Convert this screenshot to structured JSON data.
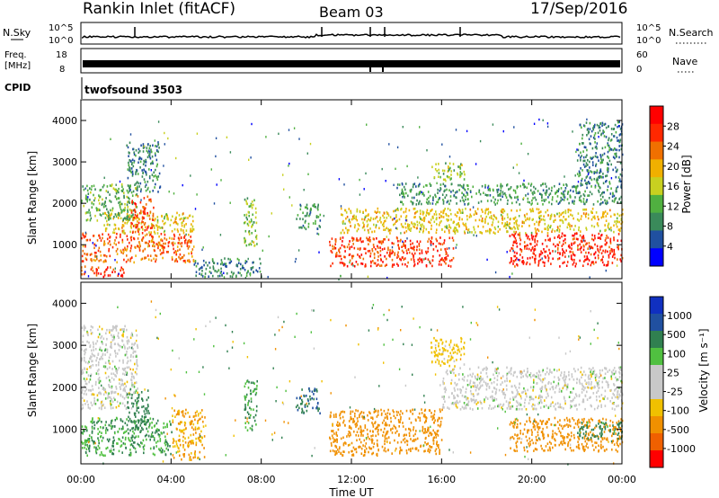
{
  "header": {
    "station": "Rankin Inlet (fitACF)",
    "beam": "Beam 03",
    "date": "17/Sep/2016"
  },
  "aux_panels": {
    "nsky": {
      "label": "N.Sky",
      "left_ticks": [
        "10^5",
        "10^0"
      ],
      "right_ticks": [
        "10^5",
        "10^0"
      ],
      "right_label": "N.Search"
    },
    "freq": {
      "label_line1": "Freq.",
      "label_line2": "[MHz]",
      "left_ticks": [
        "18",
        "8"
      ],
      "right_ticks": [
        "60",
        "0"
      ],
      "right_label": "Nave"
    },
    "cpid": {
      "label": "CPID",
      "value": "twofsound 3503"
    }
  },
  "x_axis": {
    "label": "Time UT",
    "ticks": [
      "00:00",
      "04:00",
      "08:00",
      "12:00",
      "16:00",
      "20:00",
      "00:00"
    ]
  },
  "colors": {
    "power": [
      "#0000ff",
      "#2050a0",
      "#3a8a5a",
      "#50b040",
      "#c8d020",
      "#f0b000",
      "#f07000",
      "#ff2800",
      "#ff0000"
    ],
    "velocity": [
      "#ff0000",
      "#f06000",
      "#f09000",
      "#f0c000",
      "#c8c8c8",
      "#c8c8c8",
      "#50c040",
      "#308050",
      "#2050a0",
      "#1030c0"
    ]
  },
  "chart_data": [
    {
      "type": "heatmap",
      "title": "Power",
      "xlabel": "Time UT",
      "ylabel": "Slant Range [km]",
      "xlim": [
        0,
        24
      ],
      "ylim": [
        180,
        4500
      ],
      "y_ticks": [
        "1000",
        "2000",
        "3000",
        "4000"
      ],
      "colorbar": {
        "label": "Power [dB]",
        "ticks": [
          "28",
          "24",
          "20",
          "16",
          "12",
          "8",
          "4"
        ],
        "range": [
          0,
          32
        ]
      },
      "regions": [
        {
          "t0": 0.0,
          "t1": 2.0,
          "r0": 250,
          "r1": 500,
          "v": 26
        },
        {
          "t0": 0.0,
          "t1": 5.0,
          "r0": 600,
          "r1": 1300,
          "v": 24
        },
        {
          "t0": 1.0,
          "t1": 5.0,
          "r0": 1300,
          "r1": 1800,
          "v": 18
        },
        {
          "t0": 0.0,
          "t1": 2.5,
          "r0": 1600,
          "r1": 2500,
          "v": 12
        },
        {
          "t0": 2.2,
          "t1": 3.2,
          "r0": 1300,
          "r1": 2200,
          "v": 26
        },
        {
          "t0": 2.0,
          "t1": 3.5,
          "r0": 2300,
          "r1": 3500,
          "v": 8
        },
        {
          "t0": 5.0,
          "t1": 8.0,
          "r0": 250,
          "r1": 700,
          "v": 8
        },
        {
          "t0": 7.2,
          "t1": 7.8,
          "r0": 1000,
          "r1": 2200,
          "v": 14
        },
        {
          "t0": 9.5,
          "t1": 10.6,
          "r0": 1400,
          "r1": 2000,
          "v": 10
        },
        {
          "t0": 11.0,
          "t1": 16.5,
          "r0": 500,
          "r1": 1200,
          "v": 26
        },
        {
          "t0": 11.5,
          "t1": 24.0,
          "r0": 1300,
          "r1": 1900,
          "v": 18
        },
        {
          "t0": 14.0,
          "t1": 24.0,
          "r0": 2000,
          "r1": 2500,
          "v": 10
        },
        {
          "t0": 15.5,
          "t1": 17.0,
          "r0": 2600,
          "r1": 3000,
          "v": 14
        },
        {
          "t0": 19.0,
          "t1": 24.0,
          "r0": 500,
          "r1": 1300,
          "v": 28
        },
        {
          "t0": 22.0,
          "t1": 24.0,
          "r0": 2500,
          "r1": 4000,
          "v": 8
        }
      ]
    },
    {
      "type": "heatmap",
      "title": "Velocity",
      "xlabel": "Time UT",
      "ylabel": "Slant Range [km]",
      "xlim": [
        0,
        24
      ],
      "ylim": [
        180,
        4500
      ],
      "y_ticks": [
        "1000",
        "2000",
        "3000",
        "4000"
      ],
      "colorbar": {
        "label": "Velocity [m s⁻¹]",
        "ticks": [
          "1000",
          "500",
          "100",
          "25",
          "-25",
          "-100",
          "-500",
          "-1000"
        ]
      },
      "regions": [
        {
          "t0": 0.0,
          "t1": 4.0,
          "r0": 400,
          "r1": 1300,
          "v": 100
        },
        {
          "t0": 0.0,
          "t1": 2.5,
          "r0": 1500,
          "r1": 3500,
          "v": 0
        },
        {
          "t0": 2.0,
          "t1": 3.0,
          "r0": 1000,
          "r1": 2000,
          "v": 200
        },
        {
          "t0": 4.0,
          "t1": 5.5,
          "r0": 300,
          "r1": 1500,
          "v": -100
        },
        {
          "t0": 7.2,
          "t1": 7.8,
          "r0": 1000,
          "r1": 2200,
          "v": 100
        },
        {
          "t0": 9.5,
          "t1": 10.6,
          "r0": 1400,
          "r1": 2000,
          "v": 500
        },
        {
          "t0": 11.0,
          "t1": 16.0,
          "r0": 400,
          "r1": 1500,
          "v": -200
        },
        {
          "t0": 16.0,
          "t1": 24.0,
          "r0": 1500,
          "r1": 2500,
          "v": 0
        },
        {
          "t0": 15.5,
          "t1": 17.0,
          "r0": 2500,
          "r1": 3200,
          "v": -50
        },
        {
          "t0": 19.0,
          "t1": 24.0,
          "r0": 500,
          "r1": 1300,
          "v": -300
        },
        {
          "t0": 22.0,
          "t1": 24.0,
          "r0": 800,
          "r1": 1200,
          "v": 150
        }
      ]
    }
  ]
}
